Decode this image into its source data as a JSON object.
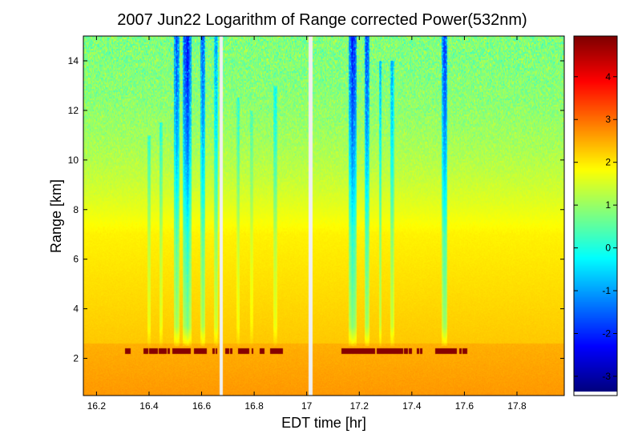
{
  "chart_data": {
    "type": "heatmap",
    "title": "2007 Jun22  Logarithm of Range corrected Power(532nm)",
    "xlabel": "EDT time [hr]",
    "ylabel": "Range [km]",
    "xlim": [
      16.15,
      17.98
    ],
    "ylim": [
      0.5,
      15.0
    ],
    "x_ticks": [
      "16.2",
      "16.4",
      "16.6",
      "16.8",
      "17",
      "17.2",
      "17.4",
      "17.6",
      "17.8"
    ],
    "y_ticks": [
      "2",
      "4",
      "6",
      "8",
      "10",
      "12",
      "14"
    ],
    "colorbar": {
      "colormap": "jet",
      "clim": [
        -3.45,
        4.95
      ],
      "ticks": [
        "-3",
        "-2",
        "-1",
        "0",
        "1",
        "2",
        "3",
        "4"
      ]
    },
    "data_gaps_hr": [
      16.675,
      17.015
    ],
    "cloud_base_km": 2.3,
    "boundary_layer_top_km": 2.6,
    "aerosol_layer_top_km": 7.0,
    "low_signal_columns": [
      {
        "x": 16.4,
        "width": 0.012,
        "top_km": 11.0,
        "strength": 0.45
      },
      {
        "x": 16.445,
        "width": 0.012,
        "top_km": 11.5,
        "strength": 0.45
      },
      {
        "x": 16.505,
        "width": 0.022,
        "top_km": 15.0,
        "strength": 0.85
      },
      {
        "x": 16.545,
        "width": 0.035,
        "top_km": 15.0,
        "strength": 1.0
      },
      {
        "x": 16.605,
        "width": 0.018,
        "top_km": 15.0,
        "strength": 0.85
      },
      {
        "x": 16.655,
        "width": 0.015,
        "top_km": 15.0,
        "strength": 0.6
      },
      {
        "x": 16.74,
        "width": 0.012,
        "top_km": 12.5,
        "strength": 0.35
      },
      {
        "x": 16.79,
        "width": 0.012,
        "top_km": 12.0,
        "strength": 0.3
      },
      {
        "x": 16.88,
        "width": 0.016,
        "top_km": 13.0,
        "strength": 0.4
      },
      {
        "x": 17.175,
        "width": 0.03,
        "top_km": 15.0,
        "strength": 1.0
      },
      {
        "x": 17.23,
        "width": 0.018,
        "top_km": 15.0,
        "strength": 0.9
      },
      {
        "x": 17.28,
        "width": 0.012,
        "top_km": 14.0,
        "strength": 0.6
      },
      {
        "x": 17.325,
        "width": 0.014,
        "top_km": 14.0,
        "strength": 0.6
      },
      {
        "x": 17.525,
        "width": 0.022,
        "top_km": 15.0,
        "strength": 0.9
      }
    ],
    "cloud_segments": [
      [
        16.31,
        16.33
      ],
      [
        16.38,
        16.48
      ],
      [
        16.49,
        16.56
      ],
      [
        16.57,
        16.62
      ],
      [
        16.64,
        16.66
      ],
      [
        16.69,
        16.72
      ],
      [
        16.74,
        16.8
      ],
      [
        16.82,
        16.84
      ],
      [
        16.86,
        16.91
      ],
      [
        17.13,
        17.4
      ],
      [
        17.42,
        17.44
      ],
      [
        17.49,
        17.57
      ],
      [
        17.58,
        17.61
      ]
    ],
    "grid": false,
    "legend": "none"
  }
}
